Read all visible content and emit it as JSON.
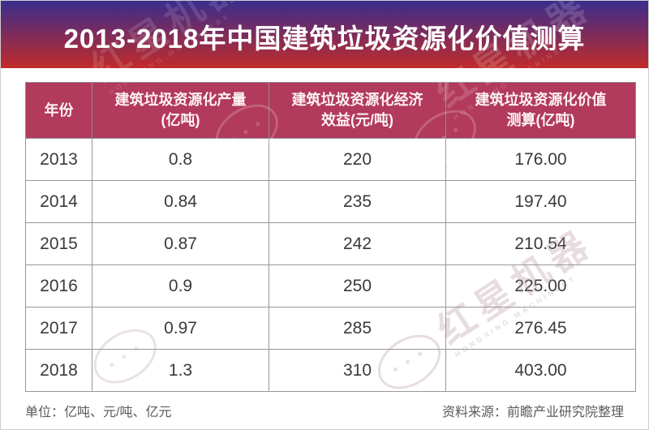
{
  "banner": {
    "title": "2013-2018年中国建筑垃圾资源化价值测算"
  },
  "chart_data": {
    "type": "table",
    "title": "2013-2018年中国建筑垃圾资源化价值测算",
    "columns": [
      "年份",
      "建筑垃圾资源化产量\n(亿吨)",
      "建筑垃圾资源化经济\n效益(元/吨)",
      "建筑垃圾资源化价值\n测算(亿吨)"
    ],
    "rows": [
      [
        "2013",
        "0.8",
        "220",
        "176.00"
      ],
      [
        "2014",
        "0.84",
        "235",
        "197.40"
      ],
      [
        "2015",
        "0.87",
        "242",
        "210.54"
      ],
      [
        "2016",
        "0.9",
        "250",
        "225.00"
      ],
      [
        "2017",
        "0.97",
        "285",
        "276.45"
      ],
      [
        "2018",
        "1.3",
        "310",
        "403.00"
      ]
    ],
    "categories": [
      "2013",
      "2014",
      "2015",
      "2016",
      "2017",
      "2018"
    ],
    "series": [
      {
        "name": "建筑垃圾资源化产量(亿吨)",
        "values": [
          0.8,
          0.84,
          0.87,
          0.9,
          0.97,
          1.3
        ]
      },
      {
        "name": "建筑垃圾资源化经济效益(元/吨)",
        "values": [
          220,
          235,
          242,
          250,
          285,
          310
        ]
      },
      {
        "name": "建筑垃圾资源化价值测算(亿吨)",
        "values": [
          176.0,
          197.4,
          210.54,
          225.0,
          276.45,
          403.0
        ]
      }
    ]
  },
  "footer": {
    "units": "单位：亿吨、元/吨、亿元",
    "source": "资料来源：前瞻产业研究院整理"
  },
  "watermark": {
    "cn": "红星机器",
    "en": "HONGXING MACHINERY",
    "stars": "★ ★ ★"
  },
  "colors": {
    "banner_top": "#3a2d8d",
    "banner_bottom": "#c12b2a",
    "header_bg": "#b23a5c",
    "header_text": "#fdf3f5",
    "cell_text": "#3a3a3a",
    "footer_text": "#5a5a5a"
  }
}
